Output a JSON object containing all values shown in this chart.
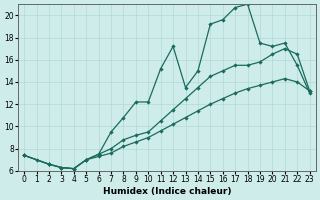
{
  "xlabel": "Humidex (Indice chaleur)",
  "ylabel": "",
  "xlim": [
    -0.5,
    23.5
  ],
  "ylim": [
    6,
    21
  ],
  "yticks": [
    6,
    8,
    10,
    12,
    14,
    16,
    18,
    20
  ],
  "xticks": [
    0,
    1,
    2,
    3,
    4,
    5,
    6,
    7,
    8,
    9,
    10,
    11,
    12,
    13,
    14,
    15,
    16,
    17,
    18,
    19,
    20,
    21,
    22,
    23
  ],
  "bg_color": "#ceecea",
  "grid_color": "#b0d8d5",
  "line_color": "#1a6b5e",
  "line1_x": [
    0,
    1,
    2,
    3,
    4,
    5,
    6,
    7,
    8,
    9,
    10,
    11,
    12,
    13,
    14,
    15,
    16,
    17,
    18,
    19,
    20,
    21,
    22,
    23
  ],
  "line1_y": [
    7.4,
    7.0,
    6.6,
    6.3,
    6.2,
    7.0,
    7.5,
    9.5,
    10.8,
    12.2,
    12.2,
    15.2,
    17.2,
    13.5,
    15.0,
    19.2,
    19.6,
    20.7,
    21.0,
    17.5,
    17.2,
    17.5,
    15.5,
    13.0
  ],
  "line2_x": [
    0,
    2,
    3,
    4,
    5,
    6,
    7,
    8,
    9,
    10,
    11,
    12,
    13,
    14,
    15,
    16,
    17,
    18,
    19,
    20,
    21,
    22,
    23
  ],
  "line2_y": [
    7.4,
    6.6,
    6.3,
    6.2,
    7.0,
    7.5,
    8.0,
    8.8,
    9.2,
    9.5,
    10.5,
    11.5,
    12.5,
    13.5,
    14.5,
    15.0,
    15.5,
    15.5,
    15.8,
    16.5,
    17.0,
    16.5,
    13.2
  ],
  "line3_x": [
    0,
    2,
    3,
    4,
    5,
    6,
    7,
    8,
    9,
    10,
    11,
    12,
    13,
    14,
    15,
    16,
    17,
    18,
    19,
    20,
    21,
    22,
    23
  ],
  "line3_y": [
    7.4,
    6.6,
    6.3,
    6.2,
    7.0,
    7.3,
    7.6,
    8.2,
    8.6,
    9.0,
    9.6,
    10.2,
    10.8,
    11.4,
    12.0,
    12.5,
    13.0,
    13.4,
    13.7,
    14.0,
    14.3,
    14.0,
    13.2
  ]
}
